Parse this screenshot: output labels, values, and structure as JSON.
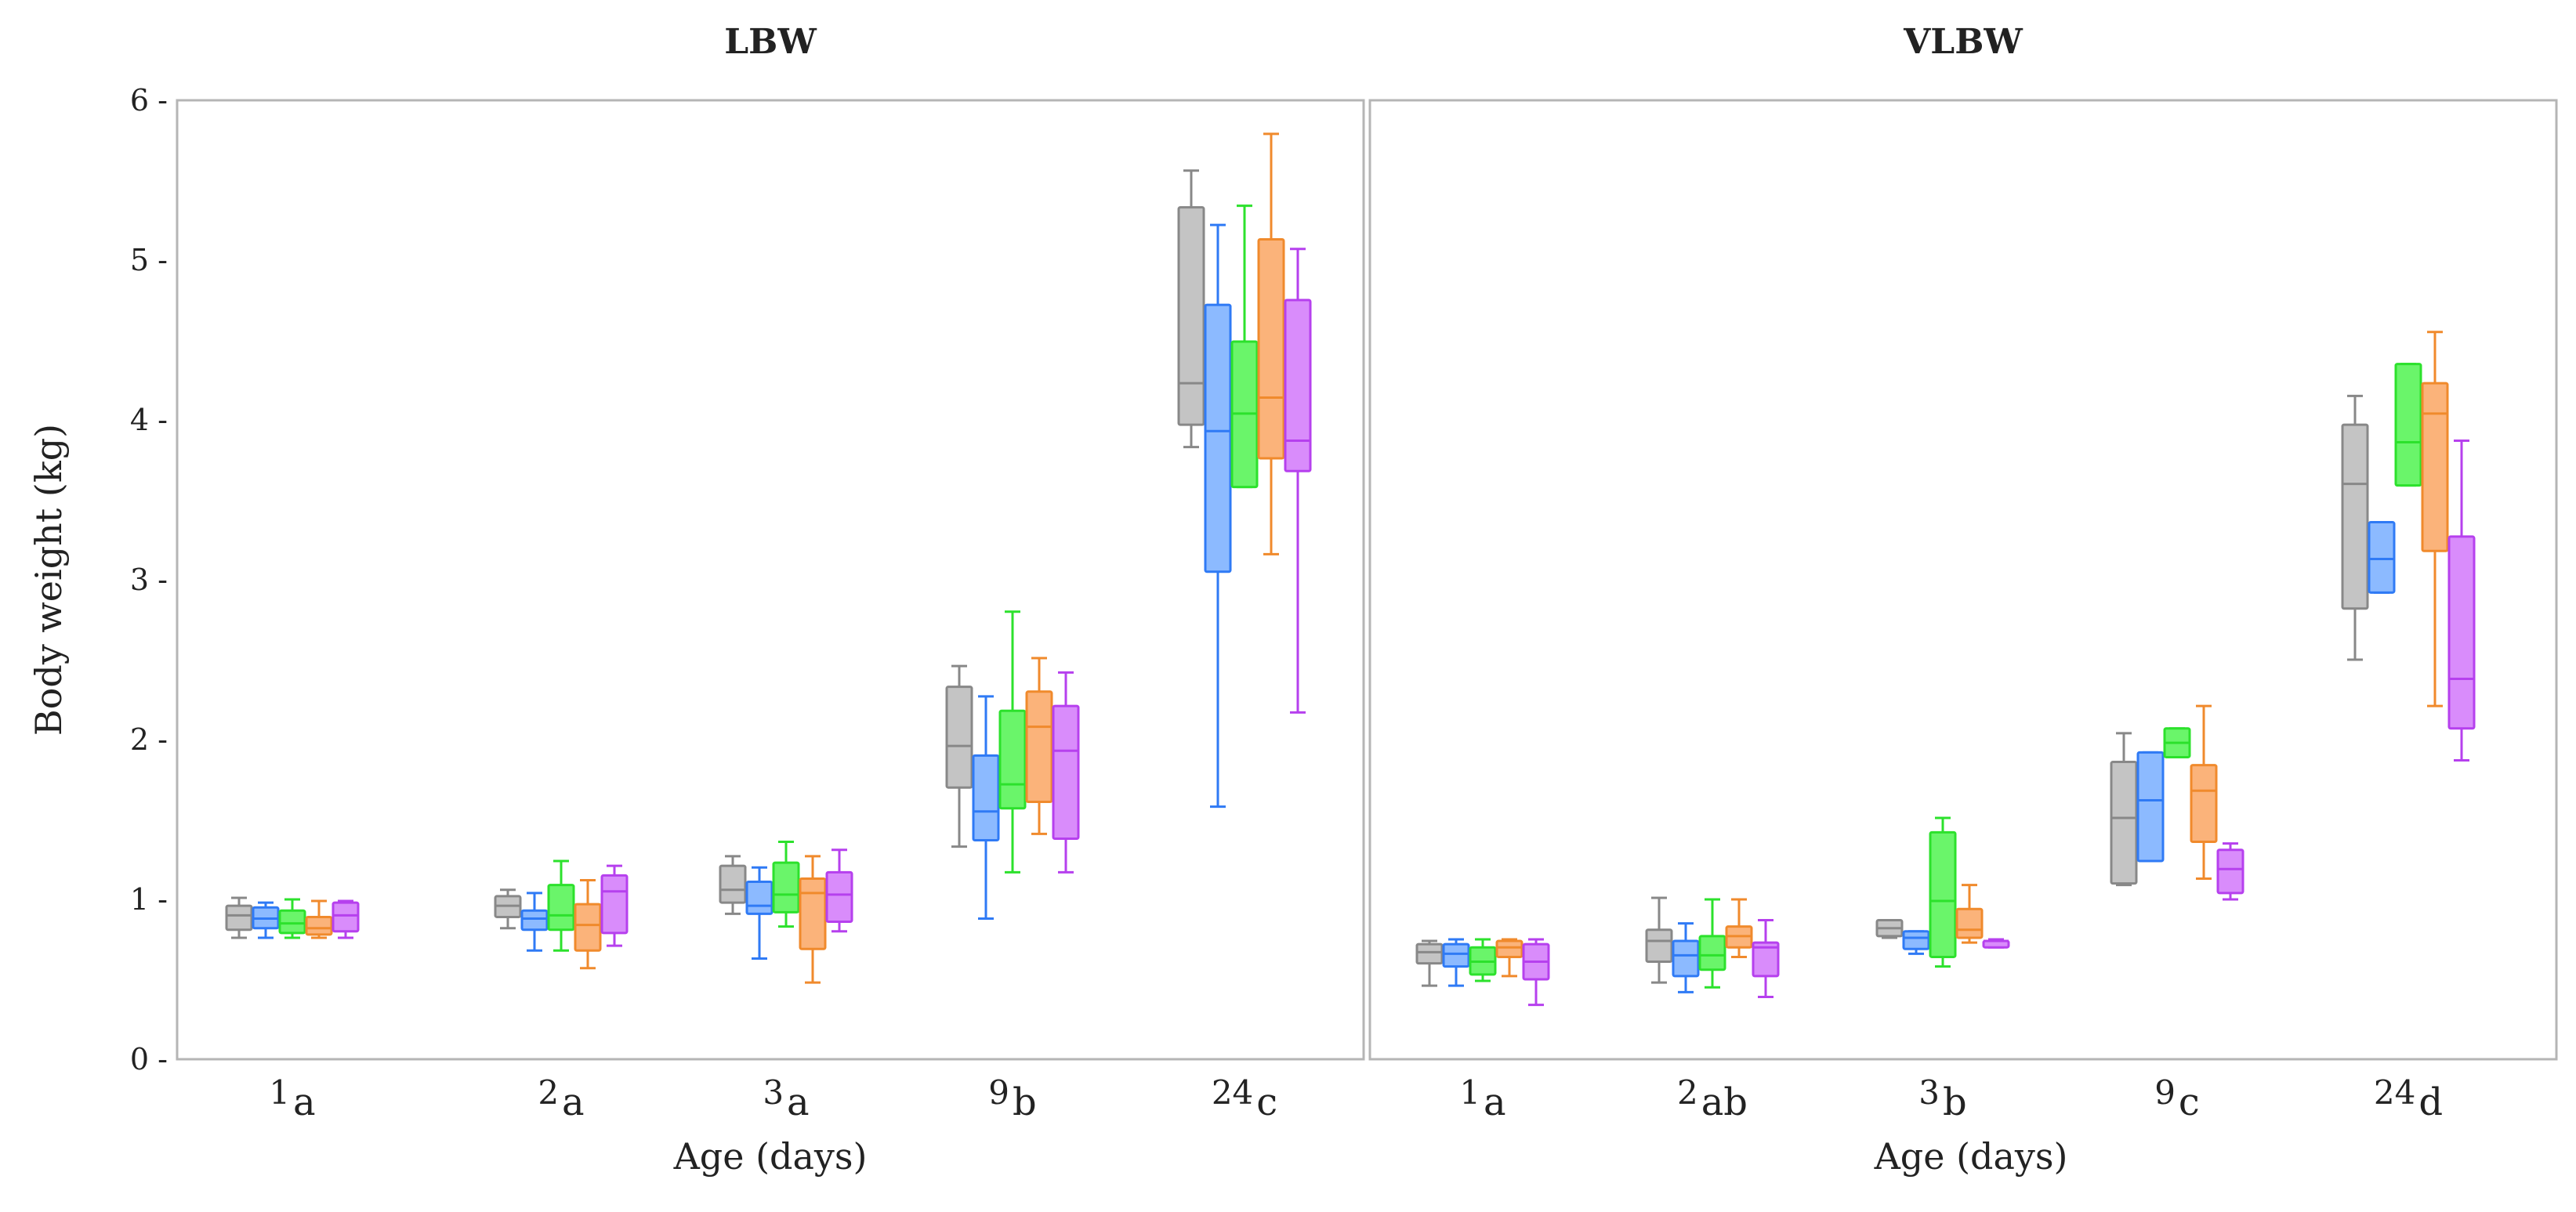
{
  "colors": [
    "#888888",
    "#2f7af5",
    "#2ce12c",
    "#f08a2c",
    "#b640ee"
  ],
  "fills": [
    "#c4c4c4",
    "#8cbaff",
    "#6af56a",
    "#fbb37a",
    "#d98cfb"
  ],
  "chart_data": [
    {
      "type": "boxplot",
      "title": "LBW",
      "xlabel": "Age (days)",
      "ylabel": "Body weight (kg)",
      "ylim": [
        0,
        6
      ],
      "yticks": [
        "0",
        "1",
        "2",
        "3",
        "4",
        "5",
        "6"
      ],
      "grid": false,
      "categories": [
        {
          "num": "1",
          "letter": "a"
        },
        {
          "num": "2",
          "letter": "a"
        },
        {
          "num": "3",
          "letter": "a"
        },
        {
          "num": "9",
          "letter": "b"
        },
        {
          "num": "24",
          "letter": "c"
        }
      ],
      "boxes": [
        [
          [
            0.76,
            0.81,
            0.9,
            0.96,
            1.01
          ],
          [
            0.76,
            0.82,
            0.88,
            0.95,
            0.98
          ],
          [
            0.76,
            0.79,
            0.85,
            0.93,
            1.0
          ],
          [
            0.76,
            0.78,
            0.82,
            0.89,
            0.99
          ],
          [
            0.76,
            0.8,
            0.9,
            0.98,
            0.99
          ]
        ],
        [
          [
            0.82,
            0.89,
            0.96,
            1.02,
            1.06
          ],
          [
            0.68,
            0.81,
            0.88,
            0.93,
            1.04
          ],
          [
            0.68,
            0.81,
            0.9,
            1.09,
            1.24
          ],
          [
            0.57,
            0.68,
            0.84,
            0.97,
            1.12
          ],
          [
            0.71,
            0.79,
            1.05,
            1.15,
            1.21
          ]
        ],
        [
          [
            0.91,
            0.98,
            1.06,
            1.21,
            1.27
          ],
          [
            0.63,
            0.91,
            0.96,
            1.11,
            1.2
          ],
          [
            0.83,
            0.92,
            1.03,
            1.23,
            1.36
          ],
          [
            0.48,
            0.69,
            1.04,
            1.13,
            1.27
          ],
          [
            0.8,
            0.86,
            1.03,
            1.17,
            1.31
          ]
        ],
        [
          [
            1.33,
            1.7,
            1.96,
            2.33,
            2.46
          ],
          [
            0.88,
            1.37,
            1.55,
            1.9,
            2.27
          ],
          [
            1.17,
            1.57,
            1.72,
            2.18,
            2.8
          ],
          [
            1.41,
            1.61,
            2.08,
            2.3,
            2.51
          ],
          [
            1.17,
            1.38,
            1.93,
            2.21,
            2.42
          ]
        ],
        [
          [
            3.83,
            3.97,
            4.23,
            5.33,
            5.56
          ],
          [
            1.58,
            3.05,
            3.93,
            4.72,
            5.22
          ],
          [
            3.58,
            3.58,
            4.04,
            4.49,
            5.34
          ],
          [
            3.16,
            3.76,
            4.14,
            5.13,
            5.79
          ],
          [
            2.17,
            3.68,
            3.87,
            4.75,
            5.07
          ]
        ]
      ]
    },
    {
      "type": "boxplot",
      "title": "VLBW",
      "xlabel": "Age (days)",
      "ylabel": "",
      "ylim": [
        0,
        6
      ],
      "grid": false,
      "categories": [
        {
          "num": "1",
          "letter": "a"
        },
        {
          "num": "2",
          "letter": "ab"
        },
        {
          "num": "3",
          "letter": "b"
        },
        {
          "num": "9",
          "letter": "c"
        },
        {
          "num": "24",
          "letter": "d"
        }
      ],
      "boxes": [
        [
          [
            0.46,
            0.6,
            0.67,
            0.72,
            0.74
          ],
          [
            0.46,
            0.58,
            0.66,
            0.72,
            0.75
          ],
          [
            0.49,
            0.53,
            0.61,
            0.7,
            0.75
          ],
          [
            0.52,
            0.64,
            0.7,
            0.74,
            0.75
          ],
          [
            0.34,
            0.5,
            0.61,
            0.72,
            0.75
          ]
        ],
        [
          [
            0.48,
            0.61,
            0.74,
            0.81,
            1.01
          ],
          [
            0.42,
            0.52,
            0.65,
            0.74,
            0.85
          ],
          [
            0.45,
            0.56,
            0.65,
            0.77,
            1.0
          ],
          [
            0.64,
            0.7,
            0.77,
            0.83,
            1.0
          ],
          [
            0.39,
            0.52,
            0.7,
            0.73,
            0.87
          ]
        ],
        [
          [
            0.76,
            0.77,
            0.82,
            0.87,
            0.87
          ],
          [
            0.66,
            0.69,
            0.76,
            0.8,
            0.8
          ],
          [
            0.58,
            0.64,
            0.99,
            1.42,
            1.51
          ],
          [
            0.73,
            0.76,
            0.81,
            0.94,
            1.09
          ],
          [
            0.7,
            0.7,
            0.74,
            0.74,
            0.75
          ]
        ],
        [
          [
            1.09,
            1.1,
            1.51,
            1.86,
            2.04
          ],
          [
            1.24,
            1.24,
            1.62,
            1.92,
            1.92
          ],
          [
            1.89,
            1.89,
            1.98,
            2.07,
            2.07
          ],
          [
            1.13,
            1.36,
            1.68,
            1.84,
            2.21
          ],
          [
            1.0,
            1.04,
            1.19,
            1.31,
            1.35
          ]
        ],
        [
          [
            2.5,
            2.82,
            3.6,
            3.97,
            4.15
          ],
          [
            2.92,
            2.92,
            3.13,
            3.36,
            3.36
          ],
          [
            3.59,
            3.59,
            3.86,
            4.35,
            4.35
          ],
          [
            2.21,
            3.18,
            4.04,
            4.23,
            4.55
          ],
          [
            1.87,
            2.07,
            2.38,
            3.27,
            3.87
          ]
        ]
      ]
    }
  ]
}
